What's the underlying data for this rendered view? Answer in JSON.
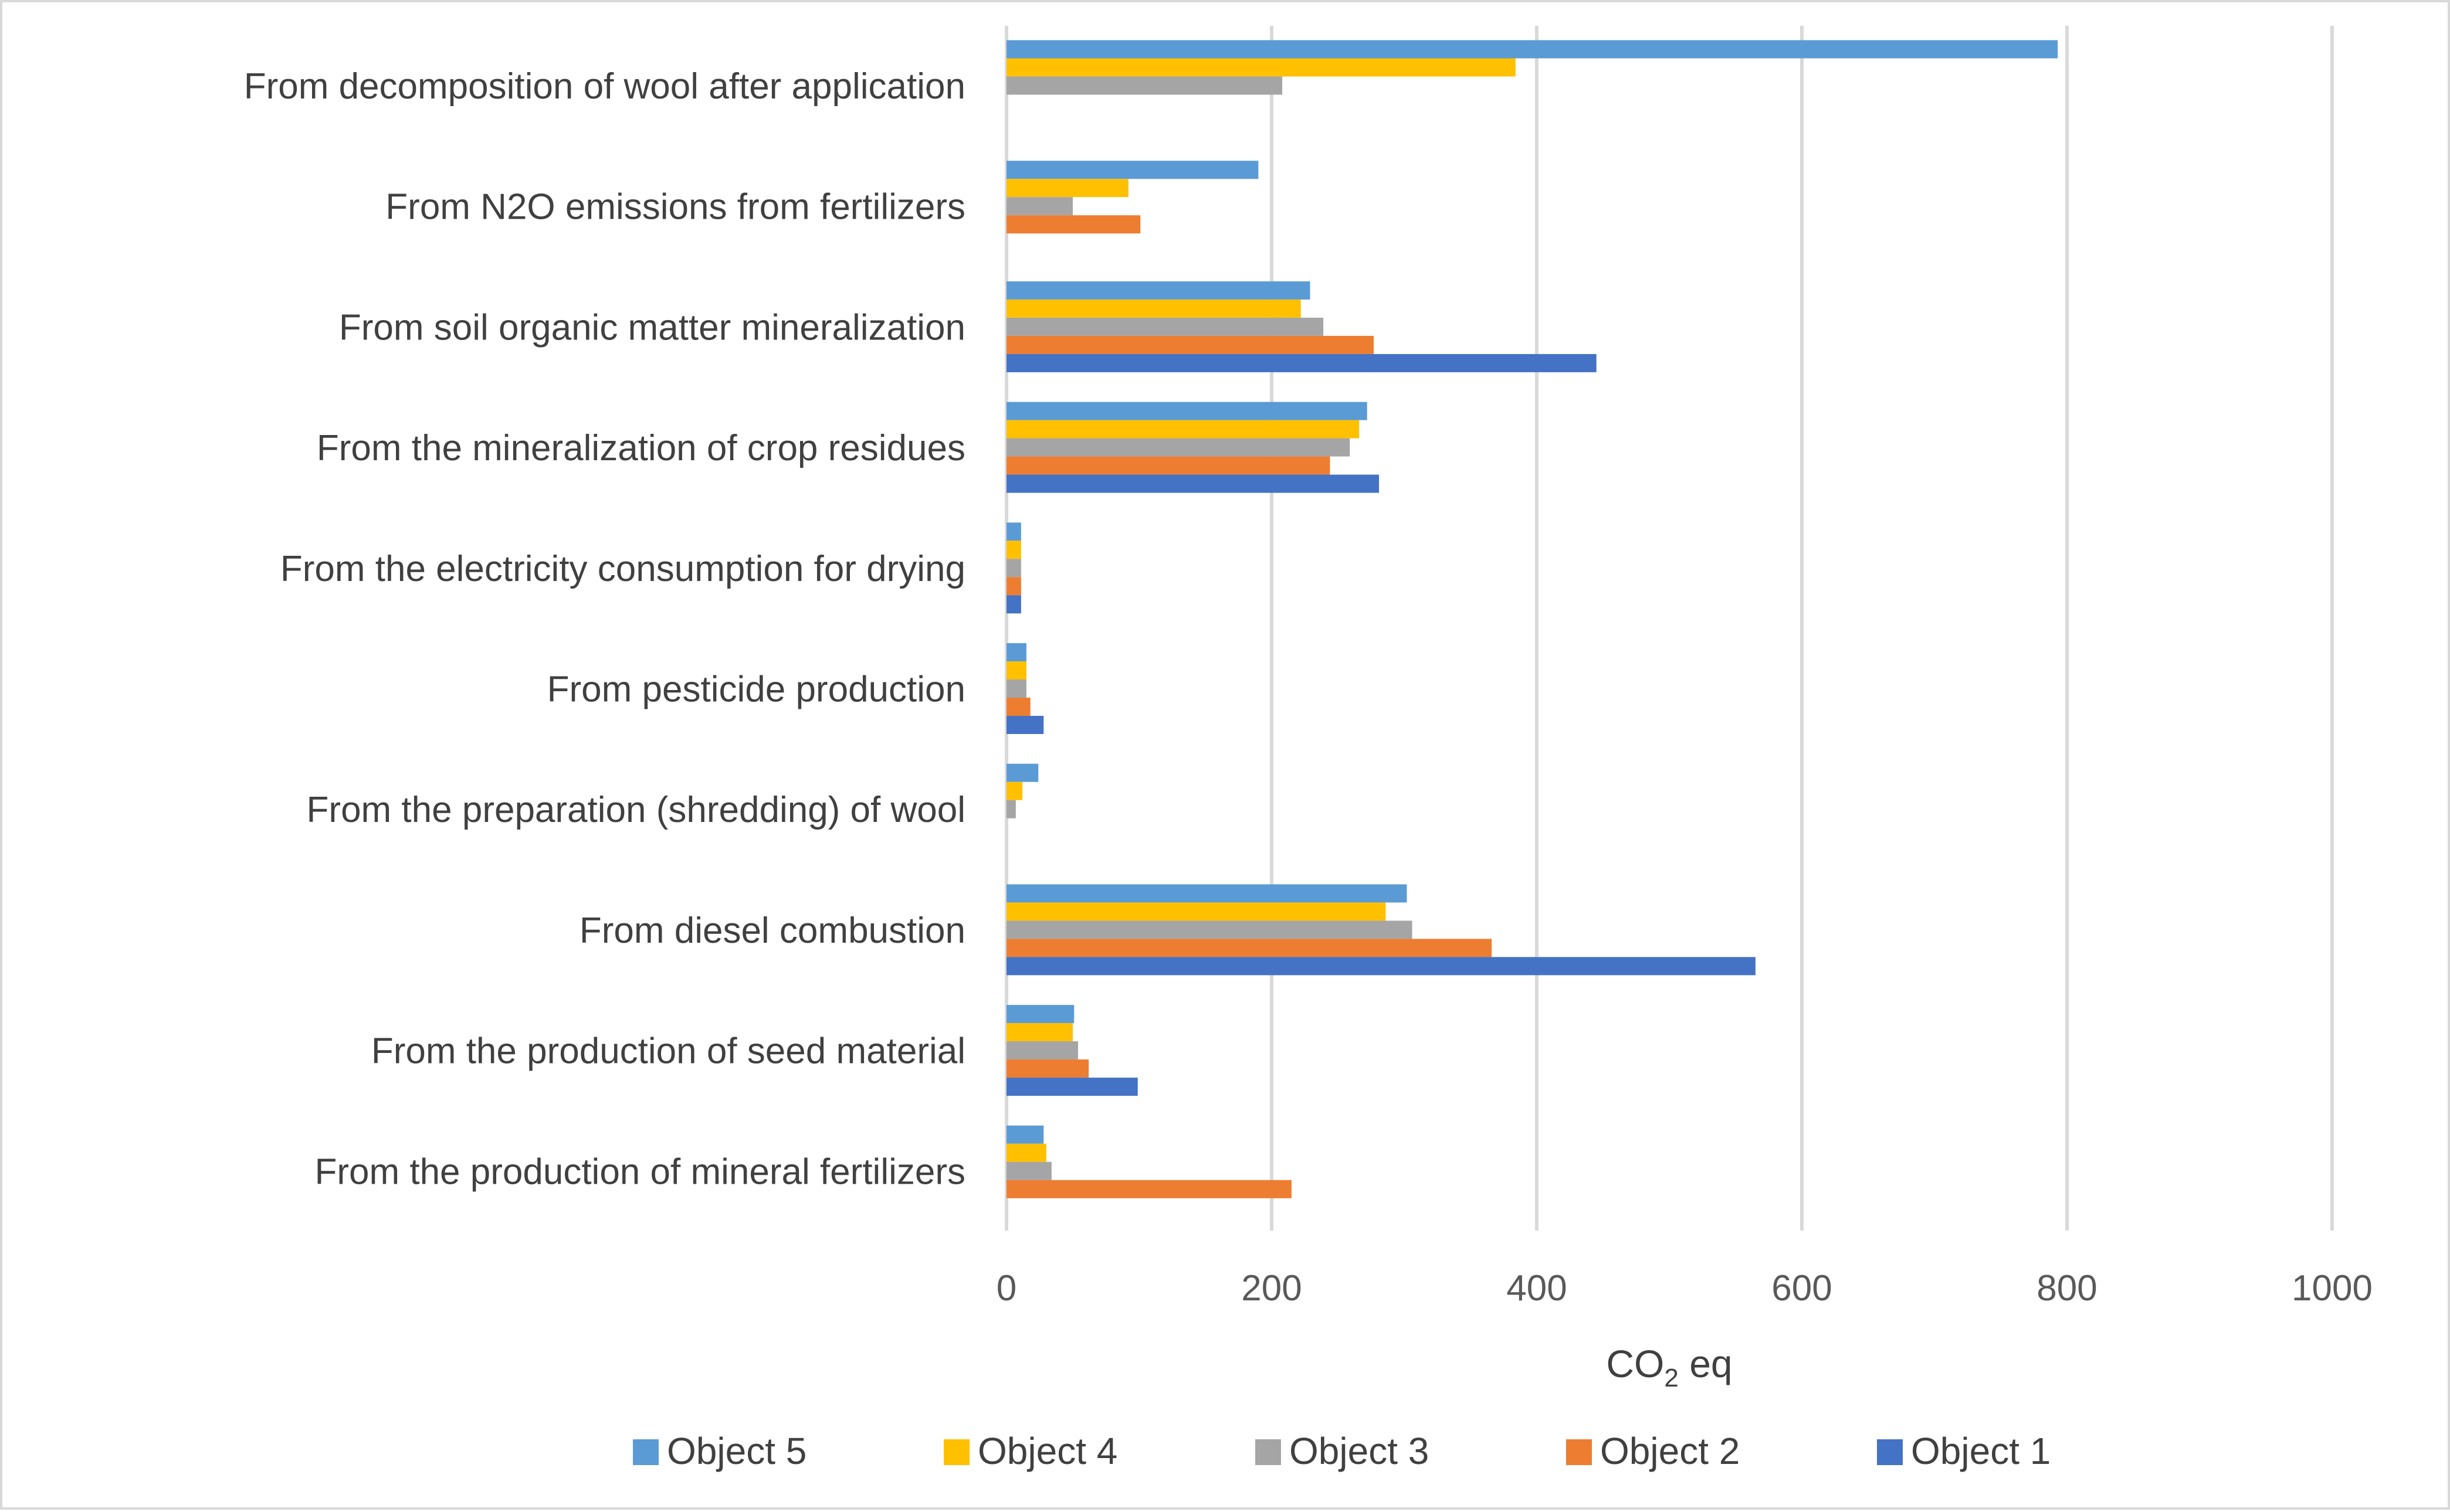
{
  "chart_data": {
    "type": "bar",
    "orientation": "horizontal",
    "title": "",
    "categories": [
      "From decomposition of wool after application",
      "From N2O emissions from fertilizers",
      "From soil organic matter mineralization",
      "From the mineralization of crop residues",
      "From the electricity consumption for drying",
      "From pesticide production",
      "From the preparation (shredding) of wool",
      "From diesel combustion",
      "From the production of seed material",
      "From the production of mineral fertilizers"
    ],
    "series": [
      {
        "name": "Object 5",
        "color": "#5B9BD5",
        "values": [
          793,
          190,
          229,
          272,
          11,
          15,
          24,
          302,
          51,
          28
        ]
      },
      {
        "name": "Object 4",
        "color": "#FFC000",
        "values": [
          384,
          92,
          222,
          266,
          11,
          15,
          12,
          286,
          50,
          30
        ]
      },
      {
        "name": "Object 3",
        "color": "#A5A5A5",
        "values": [
          208,
          50,
          239,
          259,
          11,
          15,
          7,
          306,
          54,
          34
        ]
      },
      {
        "name": "Object 2",
        "color": "#ED7D31",
        "values": [
          0,
          101,
          277,
          244,
          11,
          18,
          0,
          366,
          62,
          215
        ]
      },
      {
        "name": "Object 1",
        "color": "#4472C4",
        "values": [
          0,
          0,
          445,
          281,
          11,
          28,
          0,
          565,
          99,
          0
        ]
      }
    ],
    "xlabel_main": "CO",
    "xlabel_sub": "2",
    "xlabel_suffix": " eq",
    "ylabel": "",
    "xlim": [
      0,
      1000
    ],
    "xticks": [
      0,
      200,
      400,
      600,
      800,
      1000
    ],
    "grid": true,
    "legend_position": "bottom"
  }
}
